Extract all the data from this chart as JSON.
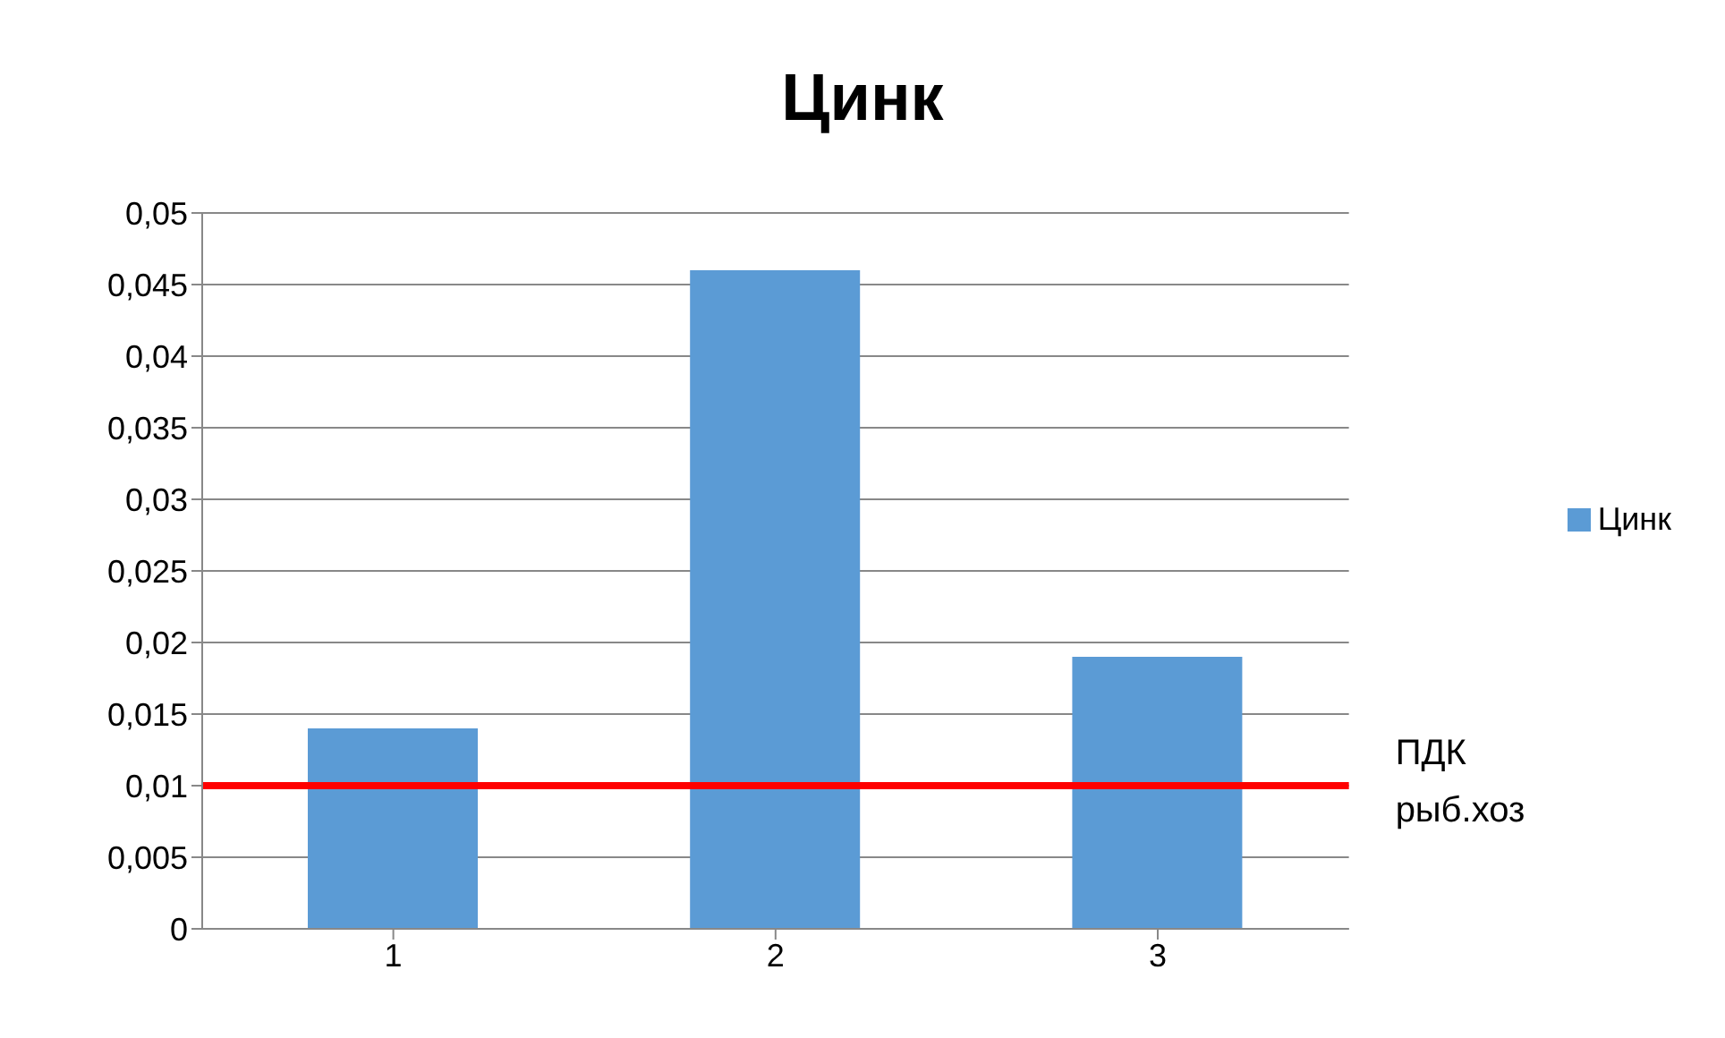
{
  "chart_data": {
    "type": "bar",
    "title": "Цинк",
    "categories": [
      "1",
      "2",
      "3"
    ],
    "series": [
      {
        "name": "Цинк",
        "color": "#5b9bd5",
        "values": [
          0.014,
          0.046,
          0.019
        ]
      }
    ],
    "ylim": [
      0,
      0.05
    ],
    "yticks": [
      0,
      {
        "value": 0.005,
        "label": "0,005"
      },
      {
        "value": 0.01,
        "label": "0,01"
      },
      {
        "value": 0.015,
        "label": "0,015"
      },
      {
        "value": 0.02,
        "label": "0,02"
      },
      {
        "value": 0.025,
        "label": "0,025"
      },
      {
        "value": 0.03,
        "label": "0,03"
      },
      {
        "value": 0.035,
        "label": "0,035"
      },
      {
        "value": 0.04,
        "label": "0,04"
      },
      {
        "value": 0.045,
        "label": "0,045"
      },
      {
        "value": 0.05,
        "label": "0,05"
      }
    ],
    "grid": "y",
    "legend": "right",
    "ref_lines": [
      {
        "axis": "y",
        "value": 0.01,
        "label": "ПДК рыб.хоз",
        "color": "#ff0000"
      }
    ]
  }
}
